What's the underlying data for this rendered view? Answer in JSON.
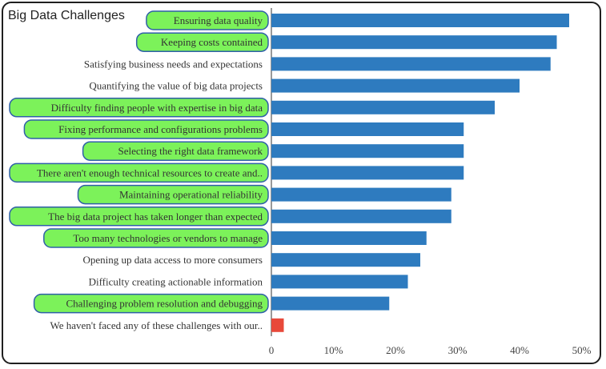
{
  "chart_data": {
    "type": "bar",
    "orientation": "horizontal",
    "title": "Big Data Challenges",
    "xlabel": "",
    "ylabel": "",
    "xlim": [
      0,
      50
    ],
    "xticks": [
      "0",
      "10%",
      "20%",
      "30%",
      "40%",
      "50%"
    ],
    "grid": false,
    "categories": [
      "Ensuring data quality",
      "Keeping costs contained",
      "Satisfying business needs and expectations",
      "Quantifying the value of big data projects",
      "Difficulty finding people with expertise in big data",
      "Fixing performance and configurations problems",
      "Selecting the right data framework",
      "There aren't enough technical resources to create and..",
      "Maintaining operational reliability",
      "The big data project has taken longer than expected",
      "Too many technologies or vendors to manage",
      "Opening up data access to more consumers",
      "Difficulty creating actionable information",
      "Challenging problem resolution and debugging",
      "We haven't faced any of these challenges with our.."
    ],
    "values": [
      48,
      46,
      45,
      40,
      36,
      31,
      31,
      31,
      29,
      29,
      25,
      24,
      22,
      19,
      2
    ],
    "highlighted": [
      true,
      true,
      false,
      false,
      true,
      true,
      true,
      true,
      true,
      true,
      true,
      false,
      false,
      true,
      false
    ],
    "colors": {
      "bar": "#2e7bbf",
      "bar_special": "#e8493a",
      "highlight_fill": "#7cf25a",
      "highlight_border": "#2f5fa8"
    }
  }
}
